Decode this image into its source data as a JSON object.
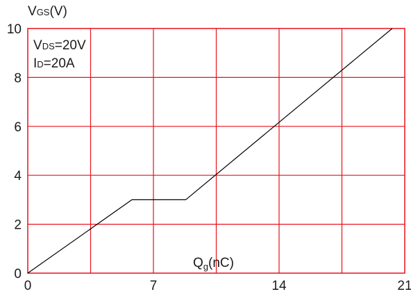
{
  "chart_data": {
    "type": "line",
    "ylabel": {
      "main": "V",
      "sub": "GS",
      "tail": "(V)"
    },
    "xlabel": {
      "main": "Q",
      "sub": "g",
      "tail": "(nC)"
    },
    "annotations": [
      {
        "main": "V",
        "sub": "DS",
        "tail": "=20V"
      },
      {
        "main": "I",
        "sub": "D",
        "tail": "=20A"
      }
    ],
    "xlim": [
      0,
      21
    ],
    "ylim": [
      0,
      10
    ],
    "x_ticks": [
      0,
      7,
      14,
      21
    ],
    "y_ticks": [
      0,
      2,
      4,
      6,
      8,
      10
    ],
    "x_tick_labels": [
      "0",
      "7",
      "14",
      "21"
    ],
    "y_tick_labels": [
      "0",
      "2",
      "4",
      "6",
      "8",
      "10"
    ],
    "x_grid_step": 3.5,
    "y_grid_step": 2,
    "grid": true,
    "grid_color": "#e8101c",
    "line_color": "#000000",
    "series": [
      {
        "points": [
          [
            0,
            0
          ],
          [
            5.8,
            3.0
          ],
          [
            8.8,
            3.0
          ],
          [
            20.3,
            10
          ]
        ]
      }
    ]
  }
}
